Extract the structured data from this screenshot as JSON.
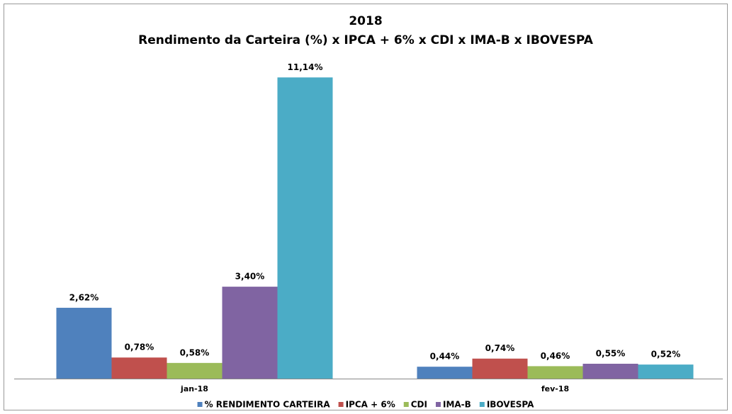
{
  "chart_data": {
    "type": "bar",
    "title": [
      "2018",
      "Rendimento da Carteira (%) x IPCA + 6%  x CDI x IMA-B x IBOVESPA"
    ],
    "categories": [
      "jan-18",
      "fev-18"
    ],
    "series": [
      {
        "name": "% RENDIMENTO CARTEIRA",
        "color": "#4f81bd",
        "values": [
          2.62,
          0.44
        ],
        "value_labels": [
          "2,62%",
          "0,44%"
        ]
      },
      {
        "name": "IPCA + 6%",
        "color": "#c0504d",
        "values": [
          0.78,
          0.74
        ],
        "value_labels": [
          "0,78%",
          "0,74%"
        ]
      },
      {
        "name": "CDI",
        "color": "#9bbb59",
        "values": [
          0.58,
          0.46
        ],
        "value_labels": [
          "0,58%",
          "0,46%"
        ]
      },
      {
        "name": "IMA-B",
        "color": "#8064a2",
        "values": [
          3.4,
          0.55
        ],
        "value_labels": [
          "3,40%",
          "0,55%"
        ]
      },
      {
        "name": "IBOVESPA",
        "color": "#4bacc6",
        "values": [
          11.14,
          0.52
        ],
        "value_labels": [
          "11,14%",
          "0,52%"
        ]
      }
    ],
    "ylim": [
      0,
      11.7
    ],
    "legend": "bottom"
  }
}
